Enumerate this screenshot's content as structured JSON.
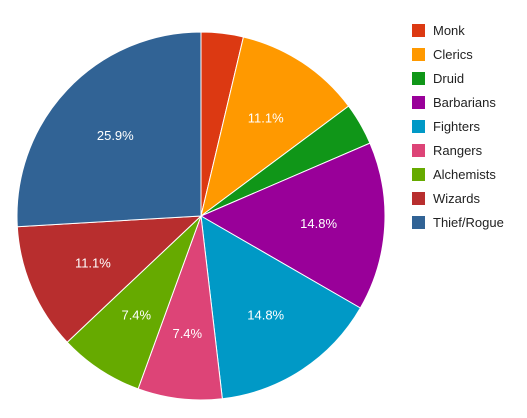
{
  "chart_data": {
    "type": "pie",
    "title": "",
    "legend_position": "right",
    "series": [
      {
        "label": "Monk",
        "value": 3.7,
        "color": "#dc3912",
        "display": ""
      },
      {
        "label": "Clerics",
        "value": 11.1,
        "color": "#ff9900",
        "display": "11.1%"
      },
      {
        "label": "Druid",
        "value": 3.7,
        "color": "#109618",
        "display": ""
      },
      {
        "label": "Barbarians",
        "value": 14.8,
        "color": "#990099",
        "display": "14.8%"
      },
      {
        "label": "Fighters",
        "value": 14.8,
        "color": "#0099c6",
        "display": "14.8%"
      },
      {
        "label": "Rangers",
        "value": 7.4,
        "color": "#dd4477",
        "display": "7.4%"
      },
      {
        "label": "Alchemists",
        "value": 7.4,
        "color": "#66aa00",
        "display": "7.4%"
      },
      {
        "label": "Wizards",
        "value": 11.1,
        "color": "#b82e2e",
        "display": "11.1%"
      },
      {
        "label": "Thief/Rogue",
        "value": 25.9,
        "color": "#316395",
        "display": "25.9%"
      }
    ]
  }
}
